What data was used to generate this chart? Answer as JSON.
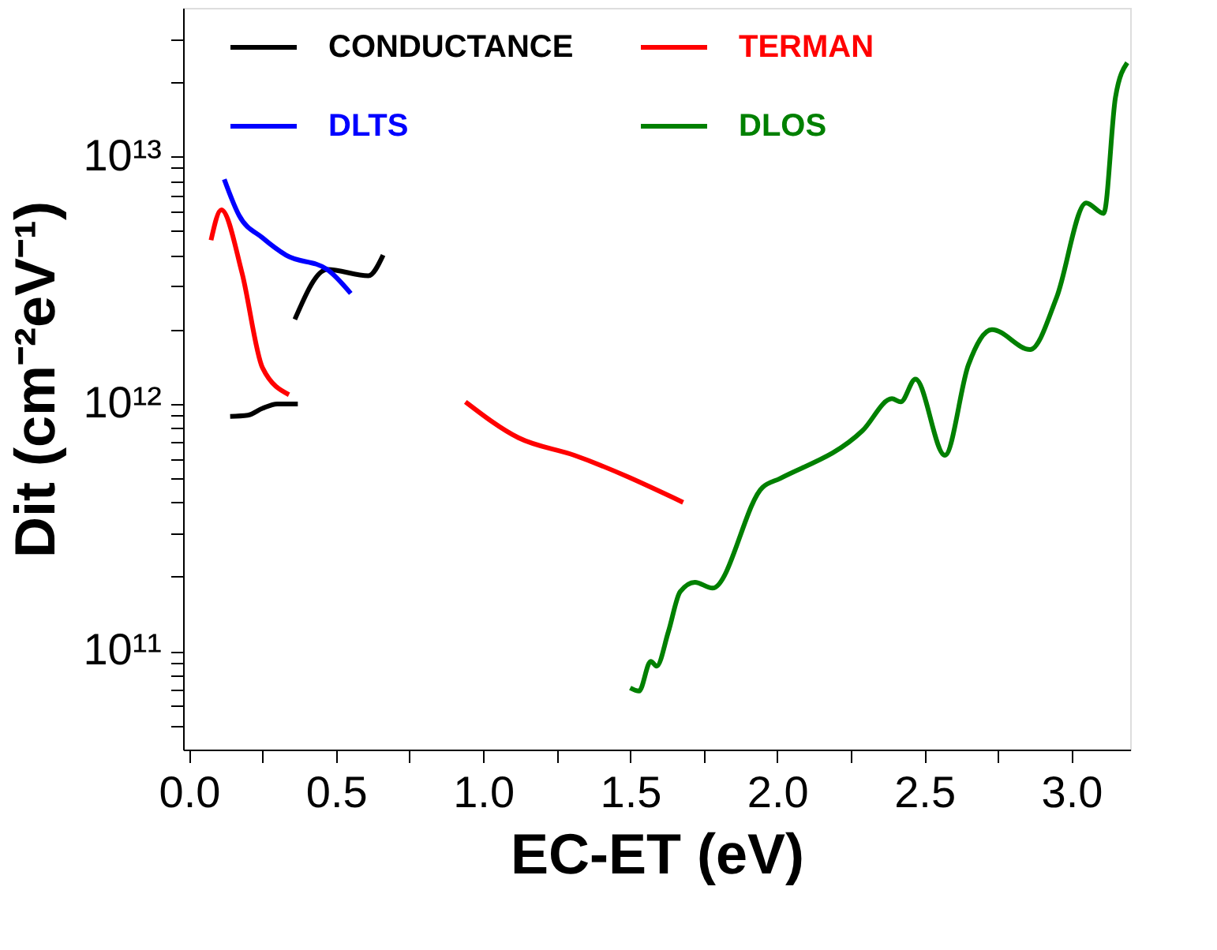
{
  "chart_data": {
    "type": "line",
    "xlabel": "EC-ET (eV)",
    "ylabel": "Dit (cm⁻²eV⁻¹)",
    "log": "y",
    "grid": false,
    "legend": "top left",
    "marker": "none",
    "line_style": "solid",
    "xlim": [
      -0.02,
      3.2
    ],
    "xticks": [
      {
        "value": 0,
        "label": "0.0"
      },
      {
        "value": 0.25,
        "label": null
      },
      0.5,
      {
        "value": 0.75,
        "label": null
      },
      {
        "value": 1,
        "label": "1.0"
      },
      {
        "value": 1.25,
        "label": null
      },
      1.5,
      {
        "value": 1.75,
        "label": null
      },
      {
        "value": 2,
        "label": "2.0"
      },
      {
        "value": 2.25,
        "label": null
      },
      2.5,
      {
        "value": 2.75,
        "label": null
      },
      {
        "value": 3,
        "label": "3.0"
      }
    ],
    "ylim": [
      40000000000.0,
      40000000000000.0
    ],
    "yticks": [
      {
        "value": 50000000000.0,
        "label": null
      },
      {
        "value": 60000000000.0,
        "label": null
      },
      {
        "value": 70000000000.0,
        "label": null
      },
      {
        "value": 80000000000.0,
        "label": null
      },
      {
        "value": 90000000000.0,
        "label": null
      },
      {
        "value": 100000000000.0,
        "label": "10¹¹"
      },
      {
        "value": 200000000000.0,
        "label": null
      },
      {
        "value": 300000000000.0,
        "label": null
      },
      {
        "value": 400000000000.0,
        "label": null
      },
      {
        "value": 500000000000.0,
        "label": null
      },
      {
        "value": 600000000000.0,
        "label": null
      },
      {
        "value": 700000000000.0,
        "label": null
      },
      {
        "value": 800000000000.0,
        "label": null
      },
      {
        "value": 900000000000.0,
        "label": null
      },
      {
        "value": 1000000000000.0,
        "label": "10¹²"
      },
      {
        "value": 2000000000000.0,
        "label": null
      },
      {
        "value": 3000000000000.0,
        "label": null
      },
      {
        "value": 4000000000000.0,
        "label": null
      },
      {
        "value": 5000000000000.0,
        "label": null
      },
      {
        "value": 6000000000000.0,
        "label": null
      },
      {
        "value": 7000000000000.0,
        "label": null
      },
      {
        "value": 8000000000000.0,
        "label": null
      },
      {
        "value": 9000000000000.0,
        "label": null
      },
      {
        "value": 10000000000000.0,
        "label": "10¹³"
      },
      {
        "value": 20000000000000.0,
        "label": null
      },
      {
        "value": 30000000000000.0,
        "label": null
      }
    ],
    "series": [
      {
        "name": "CONDUCTANCE",
        "color": "#000000",
        "x": [
          0.14,
          0.2,
          0.25,
          0.3,
          0.37,
          null,
          0.36,
          0.47,
          0.61,
          0.66
        ],
        "values": [
          890000000000.0,
          900000000000.0,
          960000000000.0,
          1000000000000.0,
          1000000000000.0,
          null,
          2200000000000.0,
          3500000000000.0,
          3300000000000.0,
          4000000000000.0
        ]
      },
      {
        "name": "DLTS",
        "color": "#0000ff",
        "x": [
          0.12,
          0.17,
          0.25,
          0.33,
          0.47,
          0.55
        ],
        "values": [
          8100000000000.0,
          5800000000000.0,
          4700000000000.0,
          4000000000000.0,
          3500000000000.0,
          2800000000000.0
        ]
      },
      {
        "name": "TERMAN",
        "color": "#ff0000",
        "x": [
          0.075,
          0.11,
          0.18,
          0.25,
          0.34,
          null,
          0.94,
          1.12,
          1.31,
          1.68
        ],
        "values": [
          4600000000000.0,
          6100000000000.0,
          3400000000000.0,
          1400000000000.0,
          1090000000000.0,
          null,
          1020000000000.0,
          730000000000.0,
          620000000000.0,
          400000000000.0
        ]
      },
      {
        "name": "DLOS",
        "color": "#008000",
        "x": [
          1.5,
          1.53,
          1.57,
          1.59,
          1.63,
          1.67,
          1.72,
          1.78,
          1.95,
          2.01,
          2.29,
          2.39,
          2.42,
          2.47,
          2.57,
          2.65,
          2.73,
          2.86,
          2.95,
          3.05,
          3.11,
          3.15,
          3.19
        ],
        "values": [
          71000000000.0,
          69000000000.0,
          91000000000.0,
          87000000000.0,
          120000000000.0,
          174000000000.0,
          190000000000.0,
          180000000000.0,
          460000000000.0,
          500000000000.0,
          780000000000.0,
          1050000000000.0,
          1020000000000.0,
          1260000000000.0,
          620000000000.0,
          1440000000000.0,
          2000000000000.0,
          1660000000000.0,
          2700000000000.0,
          6500000000000.0,
          5900000000000.0,
          17400000000000.0,
          24000000000000.0
        ]
      }
    ]
  }
}
